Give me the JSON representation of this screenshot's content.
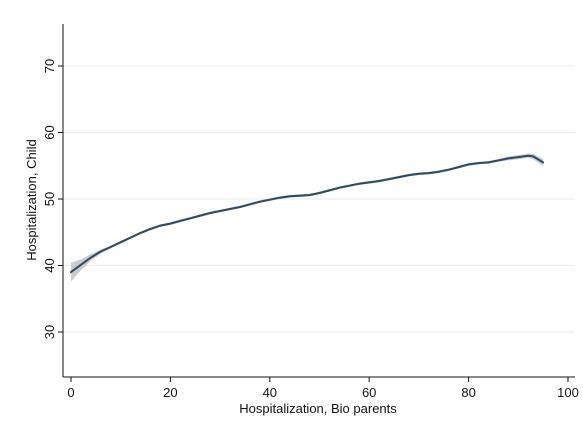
{
  "chart_data": {
    "type": "line",
    "title": "",
    "xlabel": "Hospitalization, Bio parents",
    "ylabel": "Hospitalization, Child",
    "xlim": [
      0,
      100
    ],
    "ylim": [
      24,
      76
    ],
    "x_ticks": [
      0,
      20,
      40,
      60,
      80,
      100
    ],
    "y_ticks": [
      30,
      40,
      50,
      60,
      70
    ],
    "x_tick_labels": [
      "0",
      "20",
      "40",
      "60",
      "80",
      "100"
    ],
    "y_tick_labels": [
      "30",
      "40",
      "50",
      "60",
      "70"
    ],
    "grid": true,
    "legend": "none",
    "series": [
      {
        "x": [
          0,
          2,
          4,
          6,
          8,
          10,
          12,
          14,
          16,
          18,
          20,
          22,
          24,
          26,
          28,
          30,
          32,
          34,
          36,
          38,
          40,
          42,
          44,
          46,
          48,
          50,
          52,
          54,
          56,
          58,
          60,
          62,
          64,
          66,
          68,
          70,
          72,
          74,
          76,
          78,
          80,
          82,
          84,
          86,
          88,
          90,
          92,
          93,
          95
        ],
        "y": [
          39.0,
          40.1,
          41.2,
          42.1,
          42.8,
          43.5,
          44.2,
          44.9,
          45.5,
          46.0,
          46.3,
          46.7,
          47.1,
          47.5,
          47.9,
          48.2,
          48.5,
          48.8,
          49.2,
          49.6,
          49.9,
          50.2,
          50.4,
          50.5,
          50.6,
          50.9,
          51.3,
          51.7,
          52.0,
          52.3,
          52.5,
          52.7,
          53.0,
          53.3,
          53.6,
          53.8,
          53.9,
          54.1,
          54.4,
          54.8,
          55.2,
          55.4,
          55.5,
          55.8,
          56.1,
          56.3,
          56.5,
          56.4,
          55.5
        ],
        "ci_lower": [
          37.6,
          39.3,
          40.7,
          41.8,
          42.6,
          43.3,
          44.0,
          44.7,
          45.3,
          45.8,
          46.1,
          46.5,
          46.9,
          47.3,
          47.7,
          48.0,
          48.3,
          48.6,
          49.0,
          49.4,
          49.7,
          50.0,
          50.2,
          50.3,
          50.4,
          50.7,
          51.1,
          51.5,
          51.8,
          52.1,
          52.3,
          52.5,
          52.8,
          53.1,
          53.4,
          53.6,
          53.7,
          53.9,
          54.2,
          54.6,
          55.0,
          55.2,
          55.3,
          55.6,
          55.8,
          56.0,
          56.2,
          56.0,
          55.0
        ],
        "ci_upper": [
          40.4,
          40.9,
          41.7,
          42.4,
          43.0,
          43.7,
          44.4,
          45.1,
          45.7,
          46.2,
          46.5,
          46.9,
          47.3,
          47.7,
          48.1,
          48.4,
          48.7,
          49.0,
          49.4,
          49.8,
          50.1,
          50.4,
          50.6,
          50.7,
          50.8,
          51.1,
          51.5,
          51.9,
          52.2,
          52.5,
          52.7,
          52.9,
          53.2,
          53.5,
          53.8,
          54.0,
          54.1,
          54.3,
          54.6,
          55.0,
          55.4,
          55.6,
          55.7,
          56.0,
          56.4,
          56.6,
          56.8,
          56.8,
          56.0
        ],
        "line_color": "#2e4a62",
        "ci_color": "#c8cacc"
      }
    ]
  }
}
